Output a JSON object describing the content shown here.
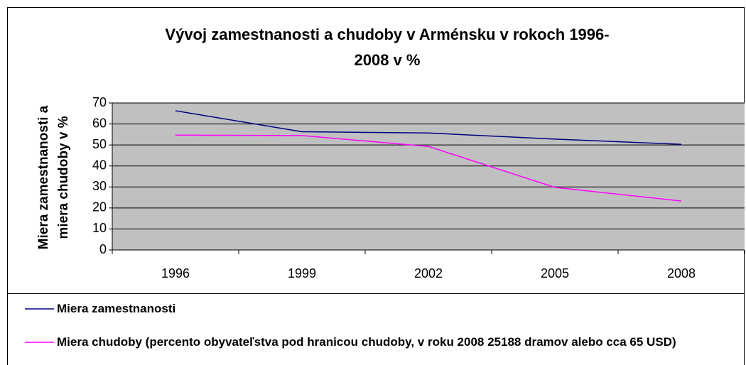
{
  "chart_data": {
    "type": "line",
    "title": [
      "Vývoj zamestnanosti a chudoby v Arménsku v rokoch 1996-",
      "2008 v %"
    ],
    "y_label": [
      "Miera zamestnanosti a",
      "miera chudoby v %"
    ],
    "categories": [
      "1996",
      "1999",
      "2002",
      "2005",
      "2008"
    ],
    "series": [
      {
        "name": "Miera zamestnanosti",
        "color": "#000080",
        "values": [
          66.3,
          56.3,
          55.7,
          52.8,
          50.3
        ]
      },
      {
        "name": "Miera chudoby (percento obyvateľstva pod hranicou chudoby, v roku 2008 25188 dramov alebo cca 65 USD)",
        "color": "#ff00ff",
        "values": [
          54.7,
          54.5,
          49.3,
          29.8,
          23.3
        ]
      }
    ],
    "ylim": [
      0,
      70
    ],
    "yticks": [
      0,
      10,
      20,
      30,
      40,
      50,
      60,
      70
    ],
    "grid": true,
    "plot_background": "#c0c0c0"
  }
}
